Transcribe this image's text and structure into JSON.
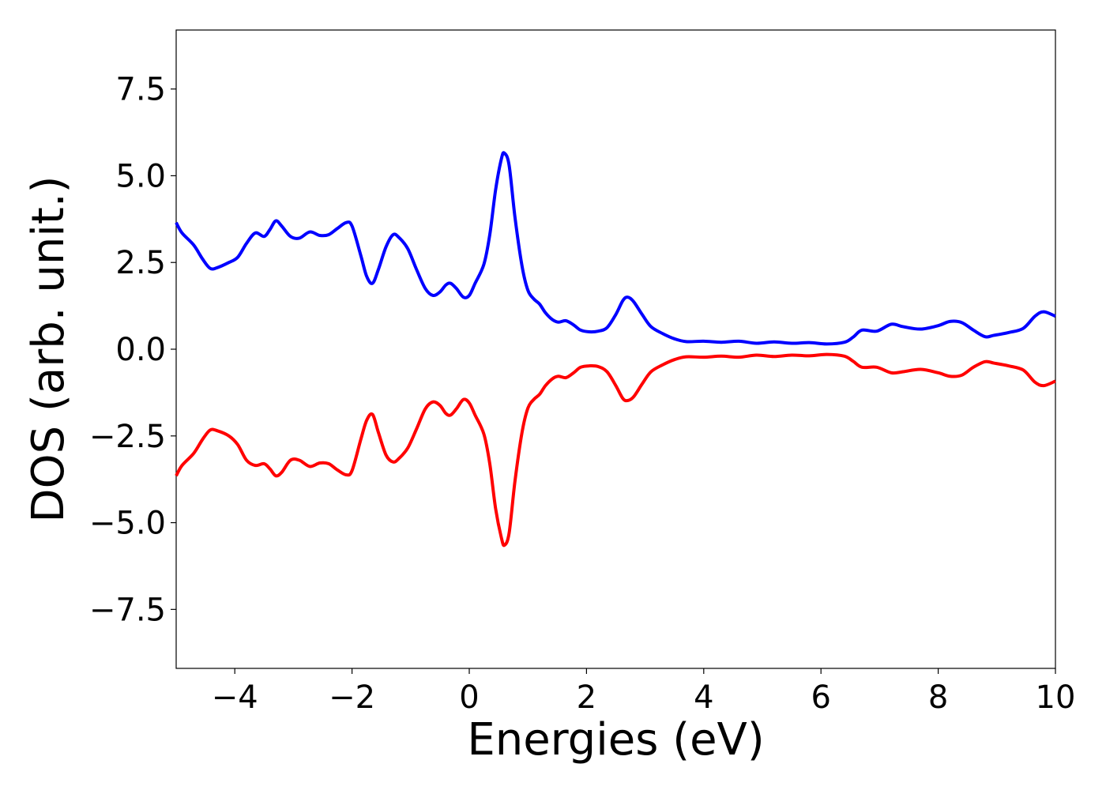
{
  "chart_data": {
    "type": "line",
    "xlabel": "Energies (eV)",
    "ylabel": "DOS (arb. unit.)",
    "xlim": [
      -5,
      10
    ],
    "ylim": [
      -9.2,
      9.2
    ],
    "xticks": [
      -4,
      -2,
      0,
      2,
      4,
      6,
      8,
      10
    ],
    "xtick_labels": [
      "−4",
      "−2",
      "0",
      "2",
      "4",
      "6",
      "8",
      "10"
    ],
    "yticks": [
      7.5,
      5.0,
      2.5,
      0.0,
      -2.5,
      -5.0,
      -7.5
    ],
    "ytick_labels": [
      "7.5",
      "5.0",
      "2.5",
      "0.0",
      "−2.5",
      "−5.0",
      "−7.5"
    ],
    "grid": false,
    "legend": "none",
    "series": [
      {
        "color": "#0000ff",
        "points": [
          [
            -5.0,
            3.65
          ],
          [
            -4.9,
            3.35
          ],
          [
            -4.7,
            3.0
          ],
          [
            -4.55,
            2.6
          ],
          [
            -4.42,
            2.33
          ],
          [
            -4.3,
            2.35
          ],
          [
            -4.1,
            2.5
          ],
          [
            -3.95,
            2.65
          ],
          [
            -3.8,
            3.05
          ],
          [
            -3.65,
            3.35
          ],
          [
            -3.5,
            3.25
          ],
          [
            -3.4,
            3.45
          ],
          [
            -3.3,
            3.7
          ],
          [
            -3.2,
            3.55
          ],
          [
            -3.05,
            3.25
          ],
          [
            -2.9,
            3.2
          ],
          [
            -2.72,
            3.38
          ],
          [
            -2.55,
            3.28
          ],
          [
            -2.4,
            3.3
          ],
          [
            -2.25,
            3.48
          ],
          [
            -2.1,
            3.65
          ],
          [
            -2.0,
            3.55
          ],
          [
            -1.85,
            2.7
          ],
          [
            -1.75,
            2.1
          ],
          [
            -1.65,
            1.9
          ],
          [
            -1.55,
            2.3
          ],
          [
            -1.42,
            2.95
          ],
          [
            -1.3,
            3.3
          ],
          [
            -1.2,
            3.22
          ],
          [
            -1.05,
            2.9
          ],
          [
            -0.9,
            2.3
          ],
          [
            -0.75,
            1.75
          ],
          [
            -0.62,
            1.55
          ],
          [
            -0.5,
            1.65
          ],
          [
            -0.4,
            1.85
          ],
          [
            -0.32,
            1.9
          ],
          [
            -0.22,
            1.75
          ],
          [
            -0.1,
            1.5
          ],
          [
            0.0,
            1.55
          ],
          [
            0.1,
            1.9
          ],
          [
            0.25,
            2.45
          ],
          [
            0.35,
            3.3
          ],
          [
            0.45,
            4.6
          ],
          [
            0.55,
            5.5
          ],
          [
            0.6,
            5.65
          ],
          [
            0.68,
            5.3
          ],
          [
            0.78,
            3.8
          ],
          [
            0.9,
            2.4
          ],
          [
            1.0,
            1.7
          ],
          [
            1.1,
            1.45
          ],
          [
            1.2,
            1.3
          ],
          [
            1.3,
            1.05
          ],
          [
            1.42,
            0.85
          ],
          [
            1.52,
            0.78
          ],
          [
            1.65,
            0.82
          ],
          [
            1.78,
            0.7
          ],
          [
            1.9,
            0.55
          ],
          [
            2.05,
            0.5
          ],
          [
            2.2,
            0.52
          ],
          [
            2.35,
            0.62
          ],
          [
            2.5,
            1.0
          ],
          [
            2.62,
            1.4
          ],
          [
            2.7,
            1.5
          ],
          [
            2.8,
            1.38
          ],
          [
            2.95,
            1.0
          ],
          [
            3.1,
            0.65
          ],
          [
            3.3,
            0.45
          ],
          [
            3.5,
            0.3
          ],
          [
            3.7,
            0.22
          ],
          [
            4.0,
            0.23
          ],
          [
            4.3,
            0.2
          ],
          [
            4.6,
            0.23
          ],
          [
            4.9,
            0.17
          ],
          [
            5.2,
            0.21
          ],
          [
            5.5,
            0.17
          ],
          [
            5.8,
            0.19
          ],
          [
            6.1,
            0.15
          ],
          [
            6.4,
            0.2
          ],
          [
            6.55,
            0.35
          ],
          [
            6.7,
            0.55
          ],
          [
            6.95,
            0.52
          ],
          [
            7.2,
            0.72
          ],
          [
            7.4,
            0.65
          ],
          [
            7.7,
            0.58
          ],
          [
            8.0,
            0.68
          ],
          [
            8.2,
            0.8
          ],
          [
            8.4,
            0.77
          ],
          [
            8.6,
            0.55
          ],
          [
            8.8,
            0.36
          ],
          [
            8.95,
            0.4
          ],
          [
            9.2,
            0.48
          ],
          [
            9.45,
            0.6
          ],
          [
            9.65,
            0.95
          ],
          [
            9.8,
            1.08
          ],
          [
            10.0,
            0.95
          ]
        ]
      },
      {
        "color": "#ff0000",
        "points": [
          [
            -5.0,
            -3.65
          ],
          [
            -4.9,
            -3.35
          ],
          [
            -4.7,
            -3.0
          ],
          [
            -4.55,
            -2.6
          ],
          [
            -4.42,
            -2.33
          ],
          [
            -4.3,
            -2.35
          ],
          [
            -4.1,
            -2.5
          ],
          [
            -3.95,
            -2.75
          ],
          [
            -3.8,
            -3.2
          ],
          [
            -3.65,
            -3.35
          ],
          [
            -3.5,
            -3.3
          ],
          [
            -3.4,
            -3.45
          ],
          [
            -3.3,
            -3.65
          ],
          [
            -3.2,
            -3.55
          ],
          [
            -3.05,
            -3.2
          ],
          [
            -2.9,
            -3.2
          ],
          [
            -2.72,
            -3.38
          ],
          [
            -2.55,
            -3.28
          ],
          [
            -2.4,
            -3.3
          ],
          [
            -2.25,
            -3.48
          ],
          [
            -2.1,
            -3.62
          ],
          [
            -2.0,
            -3.5
          ],
          [
            -1.85,
            -2.6
          ],
          [
            -1.75,
            -2.05
          ],
          [
            -1.65,
            -1.88
          ],
          [
            -1.55,
            -2.4
          ],
          [
            -1.42,
            -3.05
          ],
          [
            -1.3,
            -3.25
          ],
          [
            -1.2,
            -3.15
          ],
          [
            -1.05,
            -2.85
          ],
          [
            -0.9,
            -2.3
          ],
          [
            -0.75,
            -1.72
          ],
          [
            -0.62,
            -1.52
          ],
          [
            -0.5,
            -1.62
          ],
          [
            -0.4,
            -1.85
          ],
          [
            -0.32,
            -1.9
          ],
          [
            -0.22,
            -1.72
          ],
          [
            -0.1,
            -1.45
          ],
          [
            0.0,
            -1.55
          ],
          [
            0.1,
            -1.9
          ],
          [
            0.25,
            -2.45
          ],
          [
            0.35,
            -3.3
          ],
          [
            0.45,
            -4.6
          ],
          [
            0.55,
            -5.45
          ],
          [
            0.6,
            -5.65
          ],
          [
            0.68,
            -5.3
          ],
          [
            0.78,
            -3.8
          ],
          [
            0.9,
            -2.4
          ],
          [
            1.0,
            -1.7
          ],
          [
            1.1,
            -1.45
          ],
          [
            1.2,
            -1.3
          ],
          [
            1.3,
            -1.05
          ],
          [
            1.42,
            -0.85
          ],
          [
            1.52,
            -0.78
          ],
          [
            1.65,
            -0.82
          ],
          [
            1.78,
            -0.68
          ],
          [
            1.9,
            -0.52
          ],
          [
            2.05,
            -0.48
          ],
          [
            2.2,
            -0.5
          ],
          [
            2.35,
            -0.65
          ],
          [
            2.5,
            -1.05
          ],
          [
            2.62,
            -1.42
          ],
          [
            2.7,
            -1.48
          ],
          [
            2.8,
            -1.38
          ],
          [
            2.95,
            -1.0
          ],
          [
            3.1,
            -0.65
          ],
          [
            3.3,
            -0.45
          ],
          [
            3.5,
            -0.3
          ],
          [
            3.7,
            -0.22
          ],
          [
            4.0,
            -0.23
          ],
          [
            4.3,
            -0.2
          ],
          [
            4.6,
            -0.23
          ],
          [
            4.9,
            -0.17
          ],
          [
            5.2,
            -0.21
          ],
          [
            5.5,
            -0.17
          ],
          [
            5.8,
            -0.19
          ],
          [
            6.1,
            -0.15
          ],
          [
            6.4,
            -0.2
          ],
          [
            6.55,
            -0.35
          ],
          [
            6.7,
            -0.52
          ],
          [
            6.95,
            -0.52
          ],
          [
            7.2,
            -0.68
          ],
          [
            7.4,
            -0.65
          ],
          [
            7.7,
            -0.58
          ],
          [
            8.0,
            -0.68
          ],
          [
            8.2,
            -0.78
          ],
          [
            8.4,
            -0.75
          ],
          [
            8.6,
            -0.52
          ],
          [
            8.8,
            -0.36
          ],
          [
            8.95,
            -0.4
          ],
          [
            9.2,
            -0.48
          ],
          [
            9.45,
            -0.6
          ],
          [
            9.65,
            -0.95
          ],
          [
            9.8,
            -1.05
          ],
          [
            10.0,
            -0.92
          ]
        ]
      }
    ]
  }
}
